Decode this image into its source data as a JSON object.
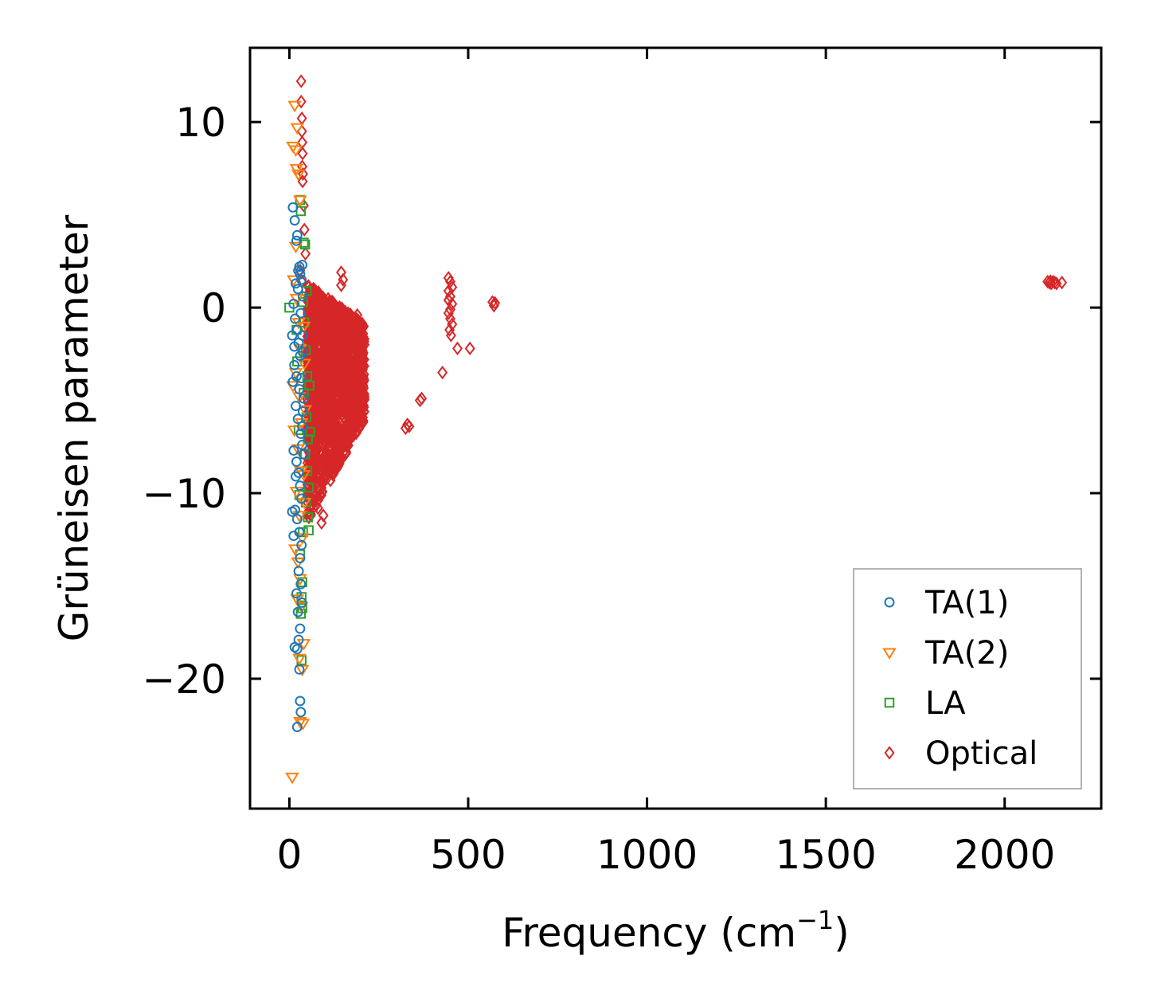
{
  "chart_data": {
    "type": "scatter",
    "title": "",
    "xlabel": "Frequency (cm",
    "xlabel_sup": "−1",
    "xlabel_suffix": ")",
    "ylabel": "Grüneisen parameter",
    "xlim": [
      -110,
      2270
    ],
    "ylim": [
      -27,
      14
    ],
    "xticks": [
      0,
      500,
      1000,
      1500,
      2000
    ],
    "xtick_labels": [
      "0",
      "500",
      "1000",
      "1500",
      "2000"
    ],
    "yticks": [
      10,
      0,
      -10,
      -20
    ],
    "ytick_labels": [
      "10",
      "0",
      "−10",
      "−20"
    ],
    "grid": false,
    "legend_position": "bottom-right",
    "colors": {
      "TA(1)": "#1f77b4",
      "TA(2)": "#ff7f0e",
      "LA": "#2ca02c",
      "Optical": "#d62728"
    },
    "series": [
      {
        "name": "TA(1)",
        "marker": "circle",
        "points": [
          [
            10,
            5.4
          ],
          [
            15,
            4.7
          ],
          [
            20,
            3.6
          ],
          [
            22,
            3.9
          ],
          [
            25,
            2.0
          ],
          [
            28,
            2.2
          ],
          [
            30,
            1.8
          ],
          [
            18,
            1.3
          ],
          [
            24,
            1.0
          ],
          [
            12,
            0.2
          ],
          [
            16,
            -0.6
          ],
          [
            22,
            -1.2
          ],
          [
            26,
            -1.9
          ],
          [
            30,
            -2.6
          ],
          [
            14,
            -3.1
          ],
          [
            20,
            -3.7
          ],
          [
            28,
            -4.4
          ],
          [
            10,
            -4.0
          ],
          [
            18,
            -5.3
          ],
          [
            24,
            -6.0
          ],
          [
            32,
            -6.8
          ],
          [
            36,
            -7.4
          ],
          [
            12,
            -7.7
          ],
          [
            20,
            -8.3
          ],
          [
            26,
            -8.9
          ],
          [
            30,
            -9.6
          ],
          [
            34,
            -10.3
          ],
          [
            16,
            -10.9
          ],
          [
            22,
            -11.4
          ],
          [
            28,
            -12.1
          ],
          [
            34,
            -12.8
          ],
          [
            30,
            -13.5
          ],
          [
            26,
            -14.2
          ],
          [
            32,
            -14.9
          ],
          [
            20,
            -15.4
          ],
          [
            35,
            -15.9
          ],
          [
            24,
            -16.4
          ],
          [
            30,
            -17.3
          ],
          [
            26,
            -17.9
          ],
          [
            15,
            -18.3
          ],
          [
            22,
            -18.4
          ],
          [
            28,
            -19.5
          ],
          [
            30,
            -21.2
          ],
          [
            32,
            -21.8
          ],
          [
            22,
            -22.6
          ],
          [
            32,
            -0.3
          ],
          [
            36,
            -1.5
          ],
          [
            38,
            -2.4
          ],
          [
            34,
            -3.8
          ],
          [
            40,
            -4.9
          ],
          [
            38,
            -5.6
          ],
          [
            36,
            -6.4
          ],
          [
            40,
            -7.9
          ],
          [
            8,
            -11.0
          ],
          [
            12,
            -12.3
          ],
          [
            34,
            1.5
          ],
          [
            38,
            0.6
          ],
          [
            8,
            -1.5
          ],
          [
            14,
            -2.1
          ],
          [
            36,
            2.3
          ],
          [
            18,
            -9.1
          ]
        ]
      },
      {
        "name": "TA(2)",
        "marker": "triangle-down",
        "points": [
          [
            15,
            10.9
          ],
          [
            22,
            9.7
          ],
          [
            10,
            8.7
          ],
          [
            18,
            8.5
          ],
          [
            20,
            7.5
          ],
          [
            25,
            7.2
          ],
          [
            30,
            5.8
          ],
          [
            18,
            3.3
          ],
          [
            12,
            1.5
          ],
          [
            20,
            0.5
          ],
          [
            26,
            -0.8
          ],
          [
            30,
            -2.2
          ],
          [
            18,
            -3.5
          ],
          [
            28,
            -4.8
          ],
          [
            34,
            -6.2
          ],
          [
            24,
            -7.6
          ],
          [
            32,
            -8.8
          ],
          [
            20,
            -9.9
          ],
          [
            28,
            -11.2
          ],
          [
            36,
            -12.4
          ],
          [
            16,
            -13.0
          ],
          [
            24,
            -13.7
          ],
          [
            30,
            -14.6
          ],
          [
            22,
            -15.7
          ],
          [
            34,
            -16.1
          ],
          [
            40,
            -18.1
          ],
          [
            28,
            -18.9
          ],
          [
            36,
            -19.5
          ],
          [
            30,
            -22.3
          ],
          [
            38,
            -22.4
          ],
          [
            8,
            -25.3
          ],
          [
            40,
            -1.0
          ],
          [
            42,
            -3.0
          ],
          [
            44,
            -5.5
          ],
          [
            40,
            -9.0
          ],
          [
            42,
            -10.5
          ],
          [
            10,
            -4.2
          ],
          [
            14,
            -6.6
          ]
        ]
      },
      {
        "name": "LA",
        "marker": "square",
        "points": [
          [
            0,
            0.0
          ],
          [
            30,
            5.8
          ],
          [
            32,
            5.2
          ],
          [
            40,
            3.5
          ],
          [
            44,
            3.4
          ],
          [
            48,
            0.9
          ],
          [
            38,
            0.3
          ],
          [
            42,
            -0.8
          ],
          [
            46,
            -2.3
          ],
          [
            50,
            -3.7
          ],
          [
            40,
            -4.6
          ],
          [
            48,
            -5.9
          ],
          [
            52,
            -7.1
          ],
          [
            44,
            -7.9
          ],
          [
            50,
            -8.8
          ],
          [
            54,
            -9.7
          ],
          [
            46,
            -10.5
          ],
          [
            52,
            -11.3
          ],
          [
            38,
            -12.1
          ],
          [
            30,
            -13.3
          ],
          [
            36,
            -14.8
          ],
          [
            34,
            -15.6
          ],
          [
            36,
            -16.2
          ],
          [
            32,
            -16.5
          ],
          [
            34,
            -19.0
          ],
          [
            22,
            -2.9
          ],
          [
            26,
            -6.6
          ],
          [
            28,
            -10.1
          ],
          [
            20,
            -1.2
          ],
          [
            56,
            -4.2
          ],
          [
            58,
            -6.7
          ],
          [
            54,
            -12.0
          ]
        ]
      },
      {
        "name": "Optical",
        "marker": "diamond",
        "cluster": {
          "description": "dense low-frequency optical band",
          "x_range": [
            50,
            210
          ],
          "y_top": 1.3,
          "y_bottom": -11.6,
          "count": 1800
        },
        "points": [
          [
            33,
            12.2
          ],
          [
            33,
            11.1
          ],
          [
            35,
            10.2
          ],
          [
            35,
            9.5
          ],
          [
            36,
            8.9
          ],
          [
            37,
            8.3
          ],
          [
            36,
            7.6
          ],
          [
            38,
            7.2
          ],
          [
            37,
            6.8
          ],
          [
            40,
            5.5
          ],
          [
            42,
            4.2
          ],
          [
            45,
            2.9
          ],
          [
            30,
            2.0
          ],
          [
            35,
            1.4
          ],
          [
            145,
            1.9
          ],
          [
            150,
            1.5
          ],
          [
            145,
            1.2
          ],
          [
            190,
            -0.4
          ],
          [
            200,
            -1.2
          ],
          [
            210,
            -2.0
          ],
          [
            175,
            -5.0
          ],
          [
            170,
            -6.5
          ],
          [
            120,
            -8.5
          ],
          [
            95,
            -11.2
          ],
          [
            90,
            -11.6
          ],
          [
            80,
            -10.8
          ],
          [
            70,
            -10.4
          ],
          [
            445,
            1.6
          ],
          [
            450,
            1.4
          ],
          [
            455,
            1.1
          ],
          [
            445,
            0.9
          ],
          [
            450,
            0.6
          ],
          [
            455,
            0.2
          ],
          [
            445,
            -0.3
          ],
          [
            450,
            -0.6
          ],
          [
            455,
            -0.9
          ],
          [
            448,
            -1.2
          ],
          [
            452,
            -1.5
          ],
          [
            445,
            0.4
          ],
          [
            450,
            -0.1
          ],
          [
            568,
            0.3
          ],
          [
            572,
            0.1
          ],
          [
            575,
            0.25
          ],
          [
            470,
            -2.2
          ],
          [
            505,
            -2.2
          ],
          [
            428,
            -3.5
          ],
          [
            370,
            -4.9
          ],
          [
            365,
            -5.0
          ],
          [
            330,
            -6.3
          ],
          [
            325,
            -6.5
          ],
          [
            335,
            -6.4
          ],
          [
            2120,
            1.4
          ],
          [
            2125,
            1.35
          ],
          [
            2130,
            1.3
          ],
          [
            2135,
            1.4
          ],
          [
            2140,
            1.35
          ],
          [
            2145,
            1.3
          ],
          [
            2128,
            1.42
          ],
          [
            2160,
            1.35
          ]
        ]
      }
    ]
  }
}
